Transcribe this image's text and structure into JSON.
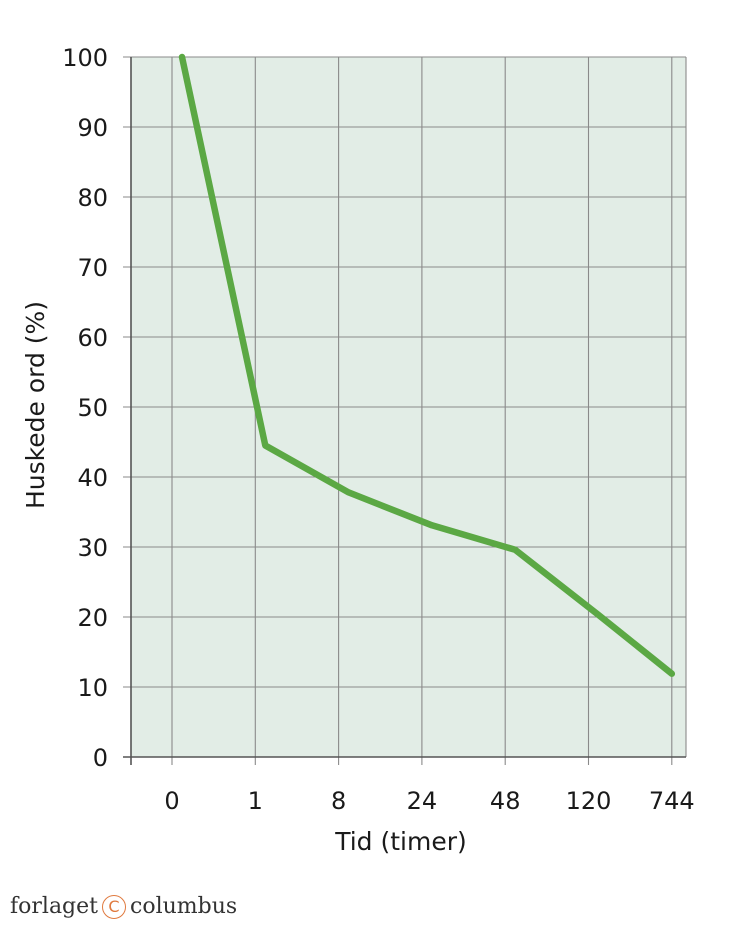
{
  "chart_data": {
    "type": "line",
    "categories": [
      "0",
      "1",
      "8",
      "24",
      "48",
      "120",
      "744"
    ],
    "series": [
      {
        "values": [
          100,
          44.5,
          37.8,
          33.1,
          29.6,
          20.3,
          11.9
        ],
        "color": "#5ba844"
      }
    ],
    "xlabel": "Tid (timer)",
    "ylabel": "Huskede ord (%)",
    "ylim": [
      0,
      100
    ],
    "yticks": [
      0,
      10,
      20,
      30,
      40,
      50,
      60,
      70,
      80,
      90,
      100
    ],
    "grid": true,
    "plot_background": "#e2ede6",
    "grid_color": "#8a8a8a"
  },
  "publisher": {
    "left": "forlaget",
    "mark": "C",
    "right": "columbus"
  }
}
